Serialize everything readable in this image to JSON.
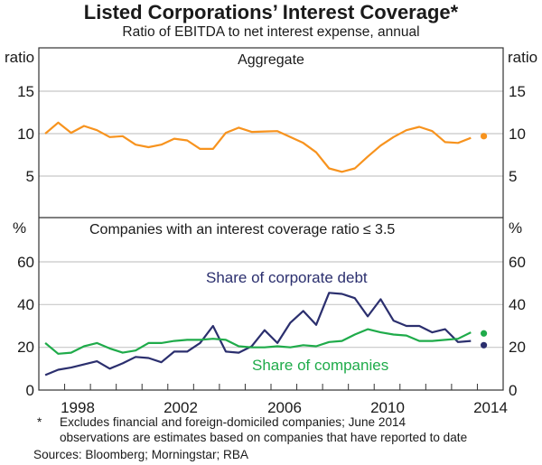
{
  "chart_data": [
    {
      "type": "line",
      "panel": "top",
      "title": "Aggregate",
      "ylabel": "ratio",
      "ylabel_right": "ratio",
      "ylim": [
        0,
        20
      ],
      "yticks": [
        5,
        10,
        15
      ],
      "grid": true,
      "x_note": "semi-annual observations starting mid-1997",
      "x": [
        1997.25,
        1997.75,
        1998.25,
        1998.75,
        1999.25,
        1999.75,
        2000.25,
        2000.75,
        2001.25,
        2001.75,
        2002.25,
        2002.75,
        2003.25,
        2003.75,
        2004.25,
        2004.75,
        2005.25,
        2005.75,
        2006.25,
        2006.75,
        2007.25,
        2007.75,
        2008.25,
        2008.75,
        2009.25,
        2009.75,
        2010.25,
        2010.75,
        2011.25,
        2011.75,
        2012.25,
        2012.75,
        2013.25,
        2013.75
      ],
      "series": [
        {
          "name": "Aggregate",
          "color": "#f7931e",
          "values": [
            10.0,
            11.3,
            10.1,
            10.9,
            10.4,
            9.6,
            9.7,
            8.7,
            8.4,
            8.7,
            9.4,
            9.2,
            8.2,
            8.2,
            10.1,
            10.7,
            10.2,
            10.25,
            10.3,
            9.6,
            8.9,
            7.8,
            5.9,
            5.5,
            5.9,
            7.3,
            8.6,
            9.6,
            10.4,
            10.8,
            10.3,
            9.0,
            8.9,
            9.5
          ],
          "estimate": {
            "x": 2014.25,
            "value": 9.7
          }
        }
      ]
    },
    {
      "type": "line",
      "panel": "bottom",
      "title": "Companies with an interest coverage ratio ≤ 3.5",
      "ylabel": "%",
      "ylabel_right": "%",
      "ylim": [
        0,
        80
      ],
      "yticks": [
        0,
        20,
        40,
        60
      ],
      "xlim": [
        1997,
        2015
      ],
      "xtick_labels": [
        "1998",
        "2002",
        "2006",
        "2010",
        "2014"
      ],
      "grid": true,
      "x": [
        1997.25,
        1997.75,
        1998.25,
        1998.75,
        1999.25,
        1999.75,
        2000.25,
        2000.75,
        2001.25,
        2001.75,
        2002.25,
        2002.75,
        2003.25,
        2003.75,
        2004.25,
        2004.75,
        2005.25,
        2005.75,
        2006.25,
        2006.75,
        2007.25,
        2007.75,
        2008.25,
        2008.75,
        2009.25,
        2009.75,
        2010.25,
        2010.75,
        2011.25,
        2011.75,
        2012.25,
        2012.75,
        2013.25,
        2013.75
      ],
      "series": [
        {
          "name": "Share of corporate debt",
          "color": "#2b2f6e",
          "values": [
            7,
            9.5,
            10.5,
            12,
            13.5,
            10,
            12.5,
            15.5,
            15,
            13,
            18,
            18,
            22,
            30,
            18,
            17.5,
            20.5,
            28,
            22,
            31.5,
            37,
            30.5,
            45.5,
            45,
            43,
            34.5,
            42.5,
            32.5,
            30,
            30,
            27,
            28.5,
            22.5,
            23
          ],
          "estimate": {
            "x": 2014.25,
            "value": 21
          }
        },
        {
          "name": "Share of companies",
          "color": "#1fab4a",
          "values": [
            22,
            17,
            17.5,
            20.5,
            22,
            19.5,
            17.5,
            18.5,
            22,
            22,
            23,
            23.5,
            23.5,
            24,
            23.5,
            20.5,
            20,
            20,
            20.5,
            20,
            21,
            20.5,
            22.5,
            23,
            26,
            28.5,
            27,
            26,
            25.5,
            23,
            23,
            23.5,
            24,
            27
          ],
          "estimate": {
            "x": 2014.25,
            "value": 26.5
          }
        }
      ]
    }
  ],
  "header": {
    "title": "Listed Corporations’ Interest Coverage*",
    "subtitle": "Ratio of EBITDA to net interest expense, annual"
  },
  "labels": {
    "top_left_unit": "ratio",
    "top_right_unit": "ratio",
    "bottom_left_unit": "%",
    "bottom_right_unit": "%",
    "top_panel_title": "Aggregate",
    "bottom_panel_title_main": "Companies with an interest coverage ratio",
    "bottom_panel_title_op": "≤ 3.5",
    "debt_label": "Share of corporate debt",
    "companies_label": "Share of companies",
    "top_yticks": [
      "15",
      "10",
      "5"
    ],
    "bottom_yticks": [
      "60",
      "40",
      "20",
      "0"
    ],
    "xticks": [
      "1998",
      "2002",
      "2006",
      "2010",
      "2014"
    ]
  },
  "footnote": {
    "star": "*",
    "line1": "Excludes financial and foreign-domiciled companies; June 2014",
    "line2": "observations are estimates based on companies that have reported to date"
  },
  "sources": "Sources: Bloomberg; Morningstar; RBA"
}
